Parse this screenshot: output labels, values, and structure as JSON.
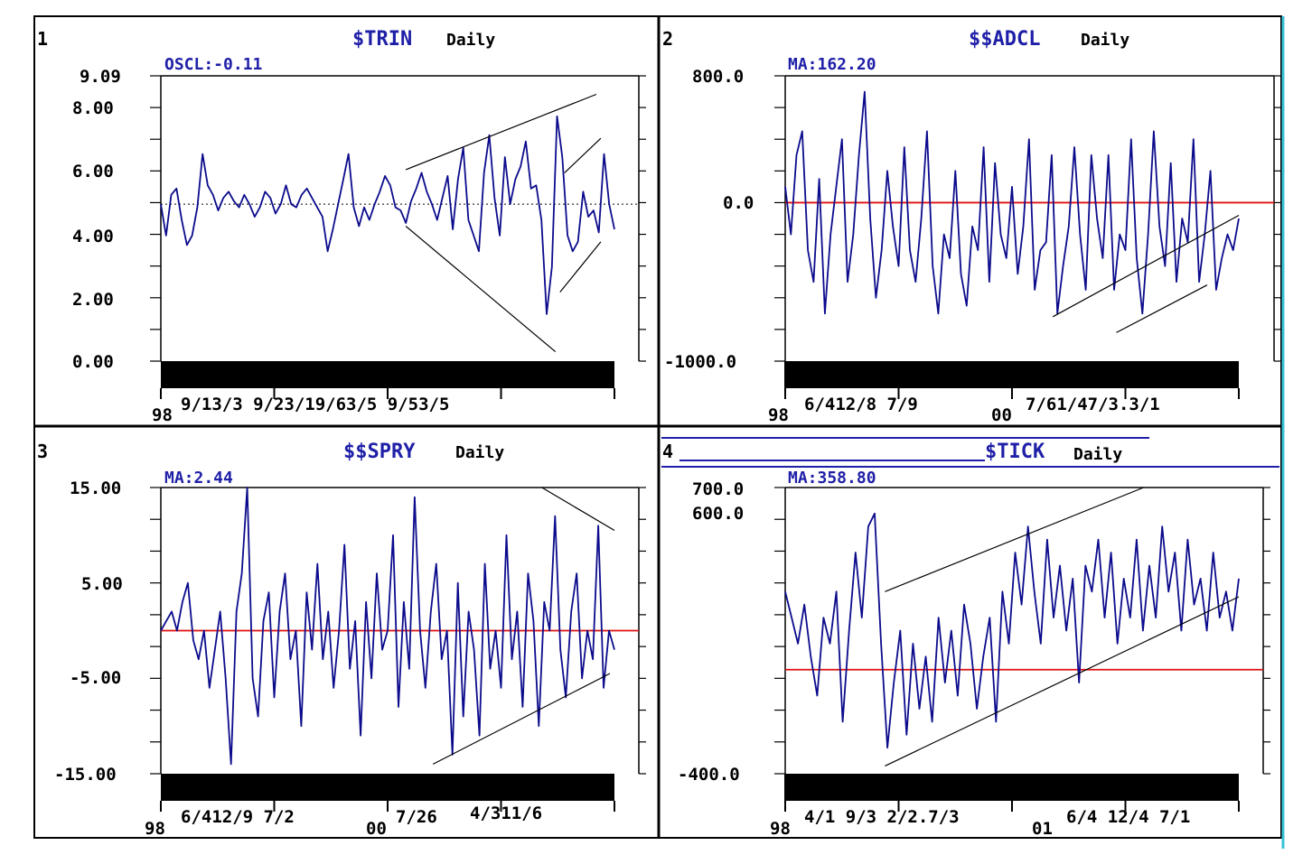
{
  "colors": {
    "series": "#0b0b8c",
    "label": "#1f1fa8",
    "ref_line": "#e01010",
    "frame": "#000000",
    "accent_bar": "#39c3d8"
  },
  "chart_data": [
    {
      "panel": "1",
      "type": "line",
      "title": "$TRIN",
      "period": "Daily",
      "indicator_label": "OSCL:-0.11",
      "ylim": [
        0,
        9.09
      ],
      "y_ticks": [
        "9.09",
        "8.00",
        "6.00",
        "4.00",
        "2.00",
        "0.00"
      ],
      "x_year_label": "98",
      "x_date_labels": "9/13/3 9/23/19/63/5 9/53/5",
      "reference_line": {
        "value": 5.0,
        "style": "dotted"
      },
      "series": [
        {
          "x_range": [
            0,
            100
          ],
          "values": [
            5.0,
            4.0,
            5.3,
            5.5,
            4.5,
            3.7,
            4.0,
            4.9,
            6.6,
            5.6,
            5.3,
            4.8,
            5.2,
            5.4,
            5.1,
            4.9,
            5.3,
            5.0,
            4.6,
            4.9,
            5.4,
            5.2,
            4.7,
            5.0,
            5.6,
            5.0,
            4.9,
            5.3,
            5.5,
            5.2,
            4.9,
            4.6,
            3.5,
            4.2,
            5.0,
            5.8,
            6.6,
            4.9,
            4.3,
            4.9,
            4.5,
            5.0,
            5.4,
            5.9,
            5.6,
            4.9,
            4.8,
            4.4,
            5.1,
            5.5,
            6.0,
            5.4,
            5.0,
            4.5,
            5.2,
            5.9,
            4.2,
            5.8,
            6.8,
            4.5,
            4.0,
            3.5,
            6.0,
            7.2,
            5.2,
            4.0,
            6.5,
            5.0,
            5.8,
            6.2,
            7.0,
            5.5,
            5.6,
            4.5,
            1.5,
            3.0,
            7.8,
            6.5,
            4.0,
            3.5,
            3.8,
            5.4,
            4.6,
            4.8,
            4.1,
            6.6,
            5.0,
            4.2
          ]
        }
      ],
      "trendlines": [
        {
          "from": [
            54,
            6.1
          ],
          "to": [
            96,
            8.5
          ]
        },
        {
          "from": [
            54,
            4.3
          ],
          "to": [
            87,
            0.3
          ]
        },
        {
          "from": [
            89,
            6.0
          ],
          "to": [
            97,
            7.1
          ]
        },
        {
          "from": [
            88,
            2.2
          ],
          "to": [
            97,
            3.8
          ]
        }
      ]
    },
    {
      "panel": "2",
      "type": "line",
      "title": "$$ADCL",
      "period": "Daily",
      "indicator_label": "MA:162.20",
      "ylim": [
        -1000,
        800
      ],
      "y_ticks": [
        "800.0",
        "0.0",
        "-1000.0"
      ],
      "x_year_label": "98",
      "x_mid_label": "00",
      "x_date_labels_a": "6/412/8 7/9",
      "x_date_labels_b": "7/61/47/3.3/1",
      "reference_line": {
        "value": 0,
        "style": "solid"
      },
      "series": [
        {
          "x_range": [
            0,
            100
          ],
          "values": [
            100,
            -200,
            300,
            450,
            -300,
            -500,
            150,
            -700,
            -200,
            100,
            400,
            -500,
            -200,
            300,
            700,
            -100,
            -600,
            -300,
            200,
            -150,
            -400,
            350,
            -300,
            -500,
            -100,
            450,
            -400,
            -700,
            -200,
            -350,
            200,
            -450,
            -650,
            -150,
            -300,
            350,
            -500,
            250,
            -200,
            -350,
            100,
            -450,
            -150,
            400,
            -550,
            -300,
            -250,
            300,
            -700,
            -400,
            -150,
            350,
            -200,
            -550,
            300,
            -100,
            -350,
            300,
            -550,
            -200,
            -300,
            400,
            -350,
            -700,
            -200,
            450,
            -150,
            -400,
            250,
            -500,
            -100,
            -250,
            400,
            -500,
            -200,
            200,
            -550,
            -350,
            -200,
            -300,
            -100
          ]
        }
      ],
      "trendlines": [
        {
          "from": [
            59,
            -720
          ],
          "to": [
            100,
            -80
          ]
        },
        {
          "from": [
            73,
            -820
          ],
          "to": [
            93,
            -520
          ]
        }
      ]
    },
    {
      "panel": "3",
      "type": "line",
      "title": "$$SPRY",
      "period": "Daily",
      "indicator_label": "MA:2.44",
      "ylim": [
        -15,
        15
      ],
      "y_ticks": [
        "15.00",
        "5.00",
        "-5.00",
        "-15.00"
      ],
      "x_year_label": "98",
      "x_mid_label": "00",
      "x_date_labels_a": "6/412/9 7/2",
      "x_date_labels_b": "7/26",
      "x_date_labels_c": "4/311/6",
      "reference_line": {
        "value": 0,
        "style": "solid"
      },
      "series": [
        {
          "x_range": [
            0,
            100
          ],
          "values": [
            0,
            1,
            2,
            0,
            3,
            5,
            -1,
            -3,
            0,
            -6,
            -2,
            2,
            -5,
            -14,
            2,
            6,
            15,
            -5,
            -9,
            1,
            4,
            -7,
            2,
            6,
            -3,
            0,
            -10,
            4,
            -2,
            7,
            -3,
            2,
            -6,
            0,
            9,
            -4,
            1,
            -11,
            3,
            -5,
            6,
            -2,
            0,
            10,
            -8,
            3,
            -4,
            14,
            0,
            -6,
            2,
            7,
            -3,
            0,
            -13,
            5,
            -9,
            2,
            -2,
            -11,
            7,
            -4,
            0,
            -6,
            10,
            -3,
            2,
            -8,
            6,
            1,
            -10,
            3,
            0,
            12,
            -2,
            -7,
            2,
            6,
            -5,
            0,
            -3,
            11,
            -6,
            0,
            -2
          ]
        }
      ],
      "trendlines": [
        {
          "from": [
            60,
            -14
          ],
          "to": [
            99,
            -4.5
          ]
        },
        {
          "from": [
            84,
            15
          ],
          "to": [
            100,
            10.5
          ]
        }
      ]
    },
    {
      "panel": "4",
      "type": "line",
      "title": "$TICK",
      "period": "Daily",
      "indicator_label": "MA:358.80",
      "ylim": [
        -400,
        700
      ],
      "y_ticks": [
        "700.0",
        "600.0",
        "-400.0"
      ],
      "x_year_label": "98",
      "x_mid_label": "01",
      "x_date_labels_a": "4/1 9/3 2/2.7/3",
      "x_date_labels_b": "6/4 12/4 7/1",
      "reference_line": {
        "value": 0,
        "style": "solid"
      },
      "series": [
        {
          "x_range": [
            0,
            100
          ],
          "values": [
            300,
            200,
            100,
            250,
            50,
            -100,
            200,
            100,
            300,
            -200,
            150,
            450,
            200,
            550,
            600,
            100,
            -300,
            -50,
            150,
            -250,
            100,
            -150,
            50,
            -200,
            200,
            -50,
            150,
            -100,
            250,
            100,
            -150,
            50,
            200,
            -200,
            300,
            100,
            450,
            250,
            550,
            300,
            100,
            500,
            200,
            400,
            150,
            350,
            -50,
            400,
            300,
            500,
            200,
            450,
            100,
            350,
            200,
            500,
            150,
            400,
            200,
            550,
            300,
            450,
            150,
            500,
            250,
            350,
            150,
            450,
            200,
            300,
            150,
            350
          ]
        }
      ],
      "trendlines": [
        {
          "from": [
            22,
            300
          ],
          "to": [
            79,
            700
          ]
        },
        {
          "from": [
            22,
            -370
          ],
          "to": [
            100,
            280
          ]
        }
      ]
    }
  ]
}
